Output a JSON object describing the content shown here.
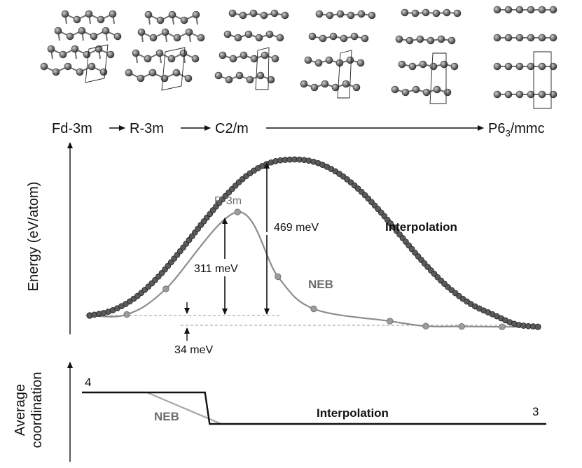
{
  "phases": {
    "labels": [
      "Fd-3m",
      "R-3m",
      "C2/m"
    ],
    "last_main": "P6",
    "last_sub": "3",
    "last_suffix": "/mmc"
  },
  "energy_panel": {
    "ylabel": "Energy (eV/atom)",
    "labels": {
      "interpolation": "Interpolation",
      "neb": "NEB",
      "r3m": "R-3m",
      "barrier_interp": "469 meV",
      "barrier_neb": "311 meV",
      "delta_end": "34 meV"
    },
    "colors": {
      "interpolation": "#3a3a3a",
      "neb": "#8c8c8c"
    }
  },
  "coordination_panel": {
    "ylabel_line1": "Average",
    "ylabel_line2": "coordination",
    "start_value": "4",
    "end_value": "3",
    "labels": {
      "interpolation": "Interpolation",
      "neb": "NEB"
    }
  },
  "chart_data": [
    {
      "type": "line",
      "title": "",
      "xlabel": "",
      "ylabel": "Energy (eV/atom)",
      "units": "meV",
      "ylim": [
        -40,
        500
      ],
      "series": [
        {
          "name": "Interpolation",
          "x": [
            0,
            0.05,
            0.1,
            0.15,
            0.2,
            0.25,
            0.3,
            0.35,
            0.4,
            0.45,
            0.5,
            0.55,
            0.6,
            0.65,
            0.7,
            0.75,
            0.8,
            0.85,
            0.9,
            0.95,
            1
          ],
          "y": [
            0,
            15,
            52,
            112,
            190,
            275,
            355,
            420,
            458,
            469,
            462,
            432,
            380,
            310,
            230,
            152,
            85,
            35,
            3,
            -26,
            -34
          ]
        },
        {
          "name": "NEB",
          "x": [
            0,
            0.083,
            0.17,
            0.33,
            0.42,
            0.5,
            0.67,
            0.75,
            0.83,
            0.92,
            1
          ],
          "y": [
            0,
            3,
            80,
            311,
            117,
            20,
            -17,
            -32,
            -33,
            -34,
            -34
          ]
        }
      ],
      "annotations": [
        "R-3m",
        "469 meV",
        "311 meV",
        "34 meV"
      ]
    },
    {
      "type": "line",
      "title": "",
      "ylabel": "Average coordination",
      "ylim": [
        3,
        4
      ],
      "series": [
        {
          "name": "Interpolation",
          "x": [
            0,
            0.265,
            0.275,
            1
          ],
          "y": [
            4,
            4,
            3,
            3
          ]
        },
        {
          "name": "NEB",
          "x": [
            0,
            0.14,
            0.3,
            1
          ],
          "y": [
            4,
            4,
            3,
            3
          ]
        }
      ]
    }
  ]
}
